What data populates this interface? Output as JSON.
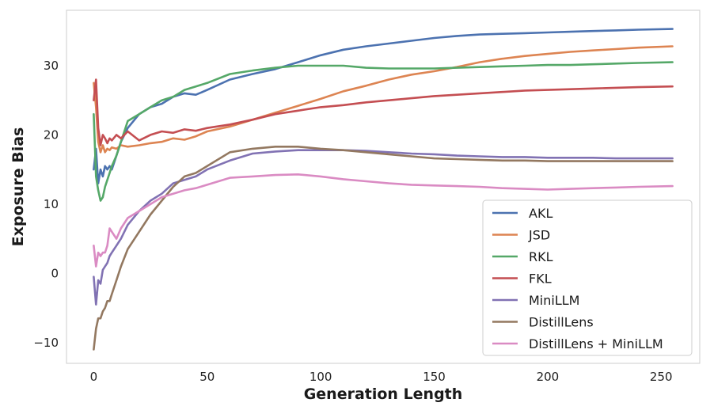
{
  "chart_data": {
    "type": "line",
    "title": "",
    "xlabel": "Generation Length",
    "ylabel": "Exposure Bias",
    "xlim": [
      -12,
      267
    ],
    "ylim": [
      -13,
      38
    ],
    "xticks": [
      0,
      50,
      100,
      150,
      200,
      250
    ],
    "yticks": [
      -10,
      0,
      10,
      20,
      30
    ],
    "xtick_labels": [
      "0",
      "50",
      "100",
      "150",
      "200",
      "250"
    ],
    "ytick_labels": [
      "−10",
      "0",
      "10",
      "20",
      "30"
    ],
    "grid": false,
    "legend_position": "lower-right",
    "series": [
      {
        "name": "AKL",
        "color": "#4c72b0",
        "x": [
          0,
          1,
          2,
          3,
          4,
          5,
          6,
          7,
          8,
          10,
          12,
          15,
          20,
          25,
          30,
          35,
          40,
          45,
          50,
          60,
          70,
          80,
          90,
          100,
          110,
          120,
          130,
          140,
          150,
          160,
          170,
          180,
          190,
          200,
          210,
          220,
          230,
          240,
          255
        ],
        "y": [
          15,
          18,
          13,
          15,
          14,
          15.5,
          15,
          15.5,
          15,
          17,
          19,
          21,
          23,
          24,
          24.5,
          25.5,
          26,
          25.8,
          26.5,
          28,
          28.8,
          29.5,
          30.5,
          31.5,
          32.3,
          32.8,
          33.2,
          33.6,
          34,
          34.3,
          34.5,
          34.6,
          34.7,
          34.8,
          34.9,
          35,
          35.1,
          35.2,
          35.3
        ]
      },
      {
        "name": "JSD",
        "color": "#dd8452",
        "x": [
          0,
          1,
          2,
          3,
          4,
          5,
          6,
          7,
          8,
          10,
          12,
          15,
          20,
          25,
          30,
          35,
          40,
          45,
          50,
          60,
          70,
          80,
          90,
          100,
          110,
          120,
          130,
          140,
          150,
          160,
          170,
          180,
          190,
          200,
          210,
          220,
          230,
          240,
          255
        ],
        "y": [
          27.5,
          24,
          19,
          17.5,
          18.5,
          17.5,
          18,
          17.8,
          18.2,
          18,
          18.5,
          18.3,
          18.5,
          18.8,
          19,
          19.5,
          19.3,
          19.8,
          20.5,
          21.2,
          22.2,
          23.2,
          24.2,
          25.2,
          26.3,
          27.1,
          28,
          28.7,
          29.2,
          29.8,
          30.5,
          31,
          31.4,
          31.7,
          32,
          32.2,
          32.4,
          32.6,
          32.8
        ]
      },
      {
        "name": "RKL",
        "color": "#55a868",
        "x": [
          0,
          1,
          2,
          3,
          4,
          5,
          6,
          7,
          8,
          10,
          12,
          15,
          20,
          25,
          30,
          35,
          40,
          45,
          50,
          60,
          70,
          80,
          90,
          100,
          110,
          120,
          130,
          140,
          150,
          160,
          170,
          180,
          190,
          200,
          210,
          220,
          230,
          240,
          255
        ],
        "y": [
          23,
          14,
          12,
          10.5,
          11,
          12.5,
          13.5,
          14.5,
          15.5,
          17,
          19,
          22,
          23,
          24,
          25,
          25.5,
          26.5,
          27,
          27.5,
          28.8,
          29.3,
          29.7,
          30,
          30,
          30,
          29.7,
          29.6,
          29.6,
          29.6,
          29.7,
          29.8,
          29.9,
          30,
          30.1,
          30.1,
          30.2,
          30.3,
          30.4,
          30.5
        ]
      },
      {
        "name": "FKL",
        "color": "#c44e52",
        "x": [
          0,
          1,
          2,
          3,
          4,
          5,
          6,
          7,
          8,
          10,
          12,
          15,
          20,
          25,
          30,
          35,
          40,
          45,
          50,
          60,
          70,
          80,
          90,
          100,
          110,
          120,
          130,
          140,
          150,
          160,
          170,
          180,
          190,
          200,
          210,
          220,
          230,
          240,
          255
        ],
        "y": [
          25,
          28,
          21,
          18.5,
          20,
          19.5,
          18.8,
          19.5,
          19.2,
          20,
          19.5,
          20.5,
          19.2,
          20,
          20.5,
          20.3,
          20.8,
          20.6,
          21,
          21.5,
          22.2,
          23,
          23.5,
          24,
          24.3,
          24.7,
          25,
          25.3,
          25.6,
          25.8,
          26,
          26.2,
          26.4,
          26.5,
          26.6,
          26.7,
          26.8,
          26.9,
          27
        ]
      },
      {
        "name": "MiniLLM",
        "color": "#8172b3",
        "x": [
          0,
          1,
          2,
          3,
          4,
          5,
          6,
          7,
          8,
          10,
          12,
          15,
          20,
          25,
          30,
          35,
          40,
          45,
          50,
          60,
          70,
          80,
          90,
          100,
          110,
          120,
          130,
          140,
          150,
          160,
          170,
          180,
          190,
          200,
          210,
          220,
          230,
          240,
          255
        ],
        "y": [
          -0.5,
          -4.5,
          -1,
          -1.5,
          0.5,
          1,
          1.5,
          2.5,
          3,
          4,
          5,
          7,
          9,
          10.5,
          11.5,
          13,
          13.5,
          14,
          15,
          16.3,
          17.3,
          17.6,
          17.8,
          17.8,
          17.8,
          17.7,
          17.5,
          17.3,
          17.2,
          17,
          16.9,
          16.8,
          16.8,
          16.7,
          16.7,
          16.7,
          16.6,
          16.6,
          16.6
        ]
      },
      {
        "name": "DistillLens",
        "color": "#937860",
        "x": [
          0,
          1,
          2,
          3,
          4,
          5,
          6,
          7,
          8,
          10,
          12,
          15,
          20,
          25,
          30,
          35,
          40,
          45,
          50,
          60,
          70,
          80,
          90,
          100,
          110,
          120,
          130,
          140,
          150,
          160,
          170,
          180,
          190,
          200,
          210,
          220,
          230,
          240,
          255
        ],
        "y": [
          -11,
          -8,
          -6.5,
          -6.5,
          -5.5,
          -5,
          -4,
          -4,
          -3,
          -1,
          1,
          3.5,
          6,
          8.5,
          10.5,
          12.5,
          14,
          14.5,
          15.5,
          17.5,
          18,
          18.3,
          18.3,
          18,
          17.8,
          17.5,
          17.2,
          16.9,
          16.6,
          16.5,
          16.4,
          16.3,
          16.3,
          16.2,
          16.2,
          16.2,
          16.2,
          16.2,
          16.2
        ]
      },
      {
        "name": "DistillLens + MiniLLM",
        "color": "#da8bc3",
        "x": [
          0,
          1,
          2,
          3,
          4,
          5,
          6,
          7,
          8,
          10,
          12,
          15,
          20,
          25,
          30,
          35,
          40,
          45,
          50,
          60,
          70,
          80,
          90,
          100,
          110,
          120,
          130,
          140,
          150,
          160,
          170,
          180,
          190,
          200,
          210,
          220,
          230,
          240,
          255
        ],
        "y": [
          4,
          1,
          3,
          2.5,
          3,
          3,
          4,
          6.5,
          6,
          5,
          6.5,
          8,
          9,
          10,
          11,
          11.5,
          12,
          12.3,
          12.8,
          13.8,
          14,
          14.2,
          14.3,
          14,
          13.6,
          13.3,
          13,
          12.8,
          12.7,
          12.6,
          12.5,
          12.3,
          12.2,
          12.1,
          12.2,
          12.3,
          12.4,
          12.5,
          12.6
        ]
      }
    ]
  }
}
